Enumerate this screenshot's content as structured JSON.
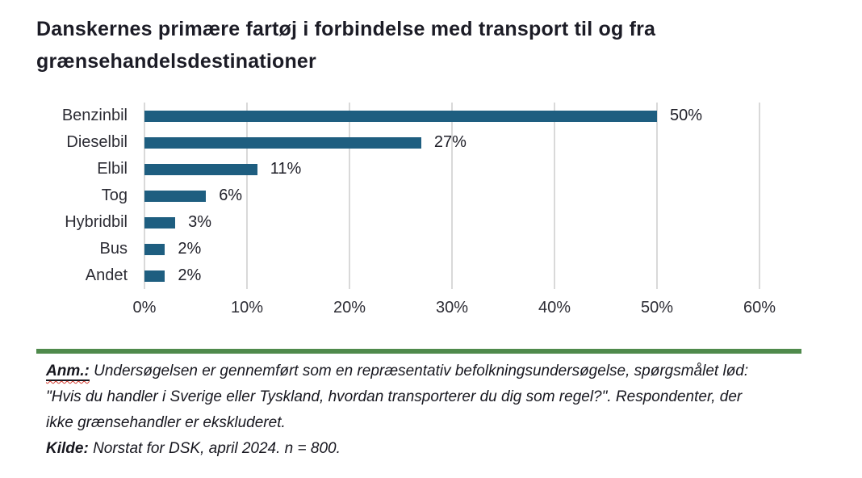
{
  "chart_data": {
    "type": "bar",
    "orientation": "horizontal",
    "title": "Danskernes primære fartøj i forbindelse med transport til og fra grænsehandelsdestinationer",
    "categories": [
      "Benzinbil",
      "Dieselbil",
      "Elbil",
      "Tog",
      "Hybridbil",
      "Bus",
      "Andet"
    ],
    "values": [
      50,
      27,
      11,
      6,
      3,
      2,
      2
    ],
    "value_labels": [
      "50%",
      "27%",
      "11%",
      "6%",
      "3%",
      "2%",
      "2%"
    ],
    "x_ticks": [
      "0%",
      "10%",
      "20%",
      "30%",
      "40%",
      "50%",
      "60%"
    ],
    "xlim": [
      0,
      60
    ],
    "xlabel": "",
    "ylabel": "",
    "grid": true,
    "legend": false,
    "bar_color": "#1e5e80",
    "gridline_color": "#d9d9d9"
  },
  "footer": {
    "rule_color": "#4f8a4c",
    "note_label": "Anm.:",
    "note_text": "Undersøgelsen er gennemført som en repræsentativ befolkningsundersøgelse, spørgsmålet lød: \"Hvis du handler i Sverige eller Tyskland, hvordan transporterer du dig som regel?\". Respondenter, der ikke grænsehandler er ekskluderet.",
    "source_label": "Kilde:",
    "source_text": "Norstat for DSK, april 2024. n = 800."
  }
}
